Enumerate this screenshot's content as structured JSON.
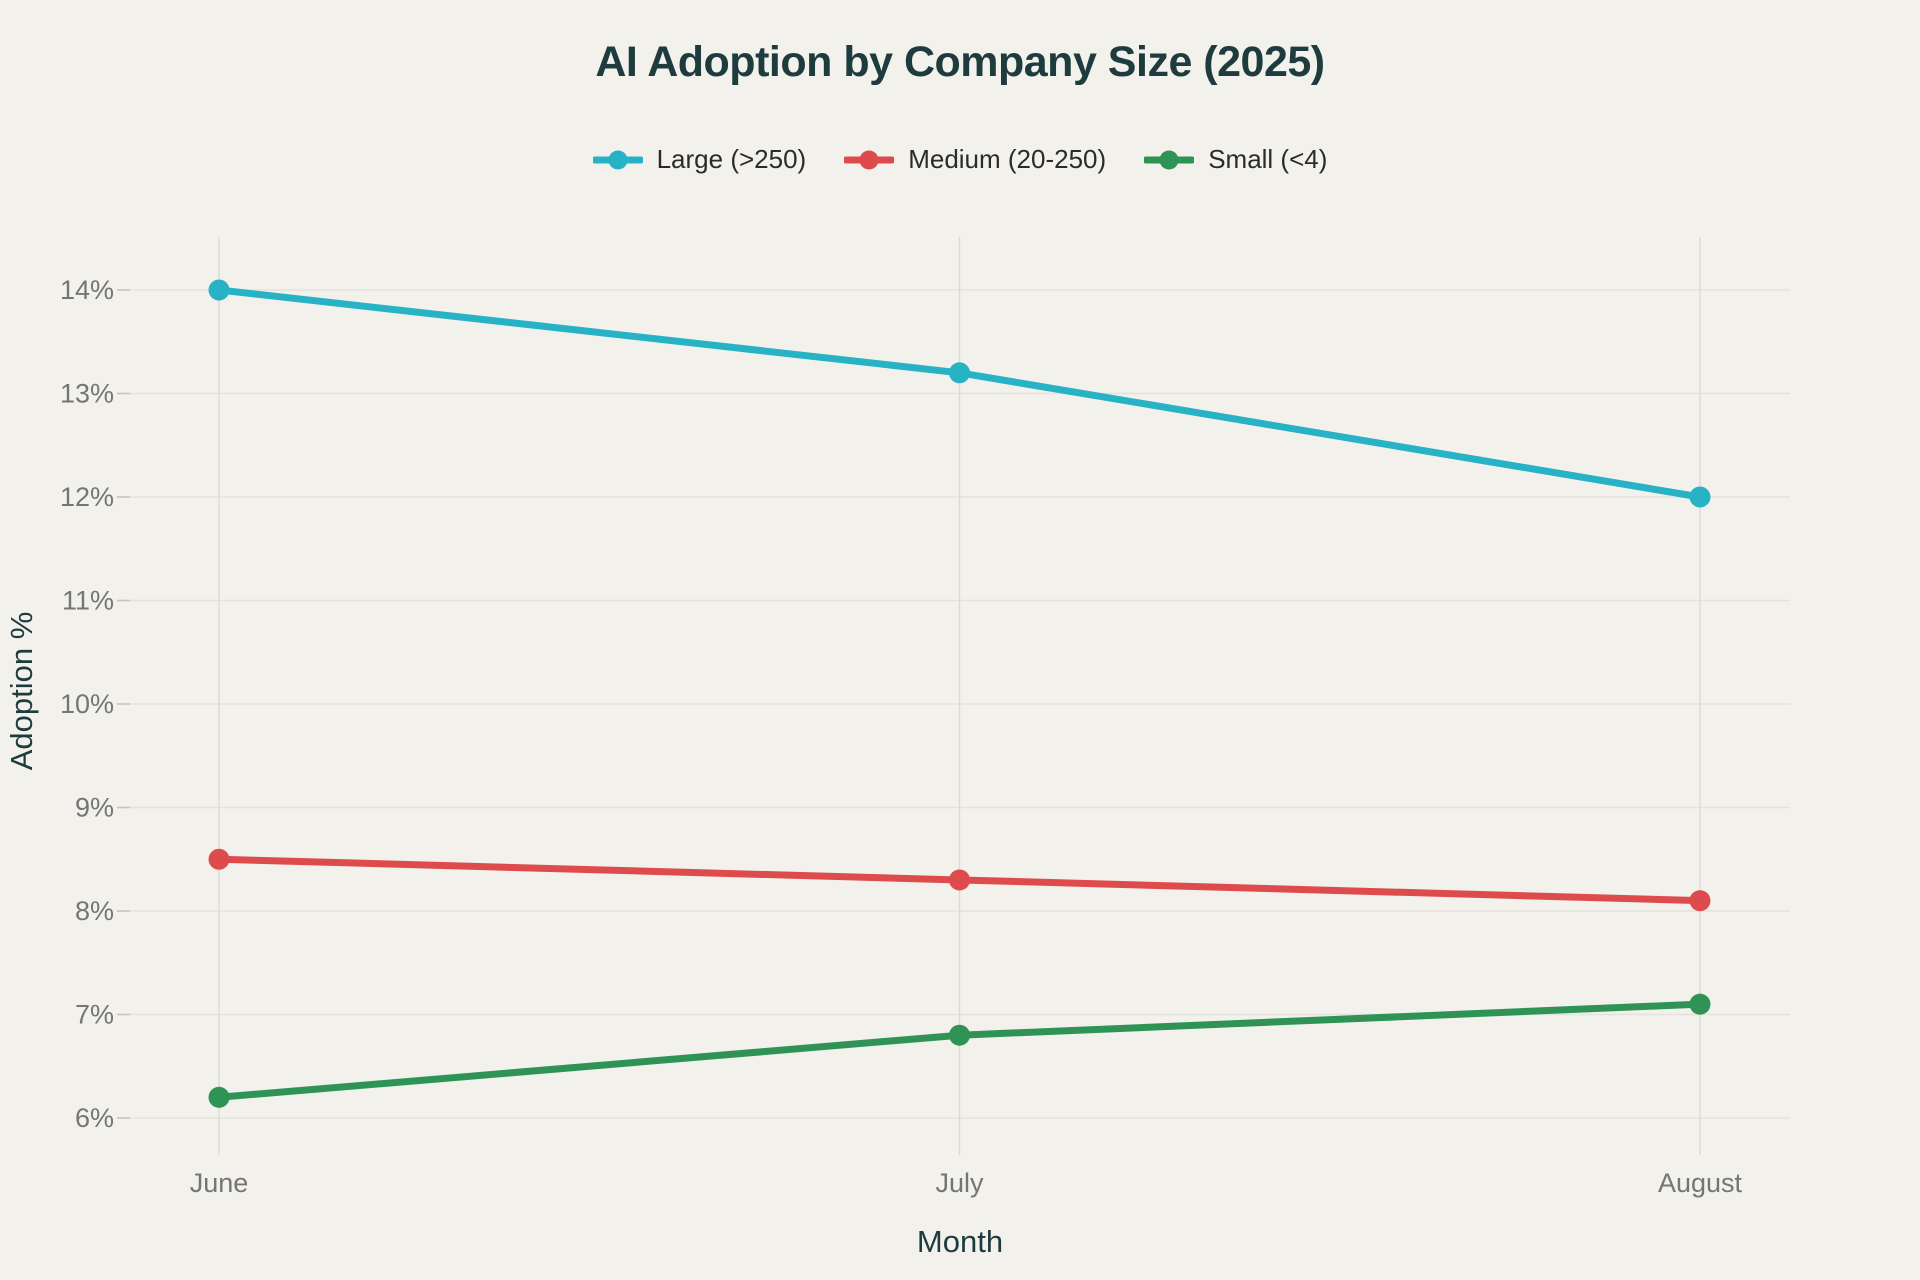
{
  "chart_data": {
    "type": "line",
    "title": "AI Adoption by Company Size (2025)",
    "xlabel": "Month",
    "ylabel": "Adoption %",
    "categories": [
      "June",
      "July",
      "August"
    ],
    "series": [
      {
        "name": "Large (>250)",
        "color": "#28b2c6",
        "values": [
          14.0,
          13.2,
          12.0
        ]
      },
      {
        "name": "Medium (20-250)",
        "color": "#dd4b4c",
        "values": [
          8.5,
          8.3,
          8.1
        ]
      },
      {
        "name": "Small (<4)",
        "color": "#2e9355",
        "values": [
          6.2,
          6.8,
          7.1
        ]
      }
    ],
    "y_ticks": [
      {
        "value": 6,
        "label": "6%"
      },
      {
        "value": 7,
        "label": "7%"
      },
      {
        "value": 8,
        "label": "8%"
      },
      {
        "value": 9,
        "label": "9%"
      },
      {
        "value": 10,
        "label": "10%"
      },
      {
        "value": 11,
        "label": "11%"
      },
      {
        "value": 12,
        "label": "12%"
      },
      {
        "value": 13,
        "label": "13%"
      },
      {
        "value": 14,
        "label": "14%"
      }
    ],
    "ylim": [
      6,
      14
    ],
    "grid": true,
    "legend_position": "top"
  },
  "colors": {
    "background": "#f2f1ec",
    "title": "#1e3b3d",
    "axis_title": "#1e3b3d",
    "tick_label": "#757575",
    "grid_line_h": "#e3e2db",
    "grid_line_v": "#dbdad3",
    "tick_mark": "#c4c3bd",
    "legend_text": "#2b2b2b"
  }
}
